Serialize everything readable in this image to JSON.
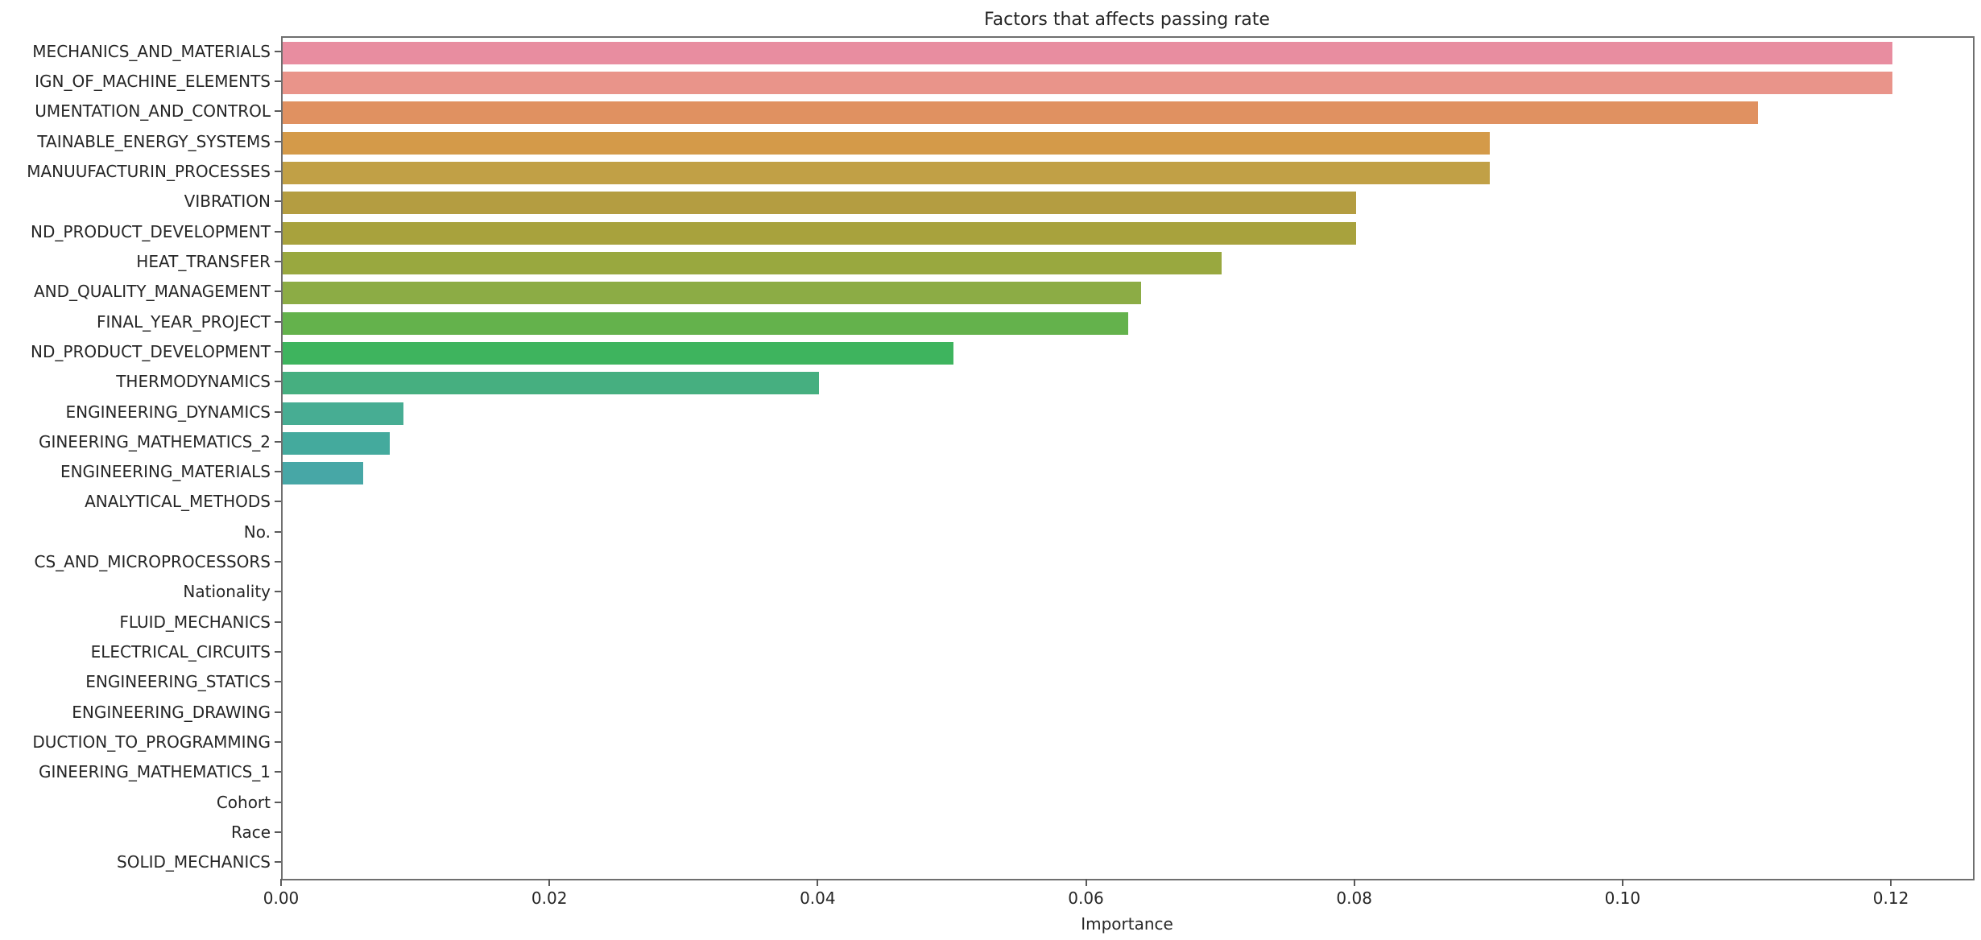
{
  "chart_data": {
    "type": "bar",
    "orientation": "horizontal",
    "title": "Factors that affects passing rate",
    "xlabel": "Importance",
    "ylabel": "",
    "xlim": [
      0,
      0.126
    ],
    "xticks": [
      0,
      0.02,
      0.04,
      0.06,
      0.08,
      0.1,
      0.12
    ],
    "xtick_labels": [
      "0.00",
      "0.02",
      "0.04",
      "0.06",
      "0.08",
      "0.10",
      "0.12"
    ],
    "grid": false,
    "legend": "none",
    "categories": [
      "MECHANICS_AND_MATERIALS",
      "IGN_OF_MACHINE_ELEMENTS",
      "UMENTATION_AND_CONTROL",
      "TAINABLE_ENERGY_SYSTEMS",
      "MANUUFACTURIN_PROCESSES",
      "VIBRATION",
      "ND_PRODUCT_DEVELOPMENT",
      "HEAT_TRANSFER",
      "AND_QUALITY_MANAGEMENT",
      "FINAL_YEAR_PROJECT",
      "ND_PRODUCT_DEVELOPMENT",
      "THERMODYNAMICS",
      "ENGINEERING_DYNAMICS",
      "GINEERING_MATHEMATICS_2",
      "ENGINEERING_MATERIALS",
      "ANALYTICAL_METHODS",
      "No.",
      "CS_AND_MICROPROCESSORS",
      "Nationality",
      "FLUID_MECHANICS",
      "ELECTRICAL_CIRCUITS",
      "ENGINEERING_STATICS",
      "ENGINEERING_DRAWING",
      "DUCTION_TO_PROGRAMMING",
      "GINEERING_MATHEMATICS_1",
      "Cohort",
      "Race",
      "SOLID_MECHANICS"
    ],
    "values": [
      0.12,
      0.12,
      0.11,
      0.09,
      0.09,
      0.08,
      0.08,
      0.07,
      0.064,
      0.063,
      0.05,
      0.04,
      0.009,
      0.008,
      0.006,
      0,
      0,
      0,
      0,
      0,
      0,
      0,
      0,
      0,
      0,
      0,
      0,
      0
    ],
    "bar_colors": [
      "#e88da0",
      "#e9948a",
      "#e09161",
      "#d49a49",
      "#c1a046",
      "#b49d41",
      "#a8a23d",
      "#99a83f",
      "#8cac45",
      "#64b24c",
      "#3eb45e",
      "#46af80",
      "#47ad93",
      "#44aa9d",
      "#47a7a6",
      "",
      "",
      "",
      "",
      "",
      "",
      "",
      "",
      "",
      "",
      "",
      "",
      ""
    ],
    "axis_color": "#6f6f6f",
    "text_color": "#262626",
    "background": "#ffffff"
  }
}
